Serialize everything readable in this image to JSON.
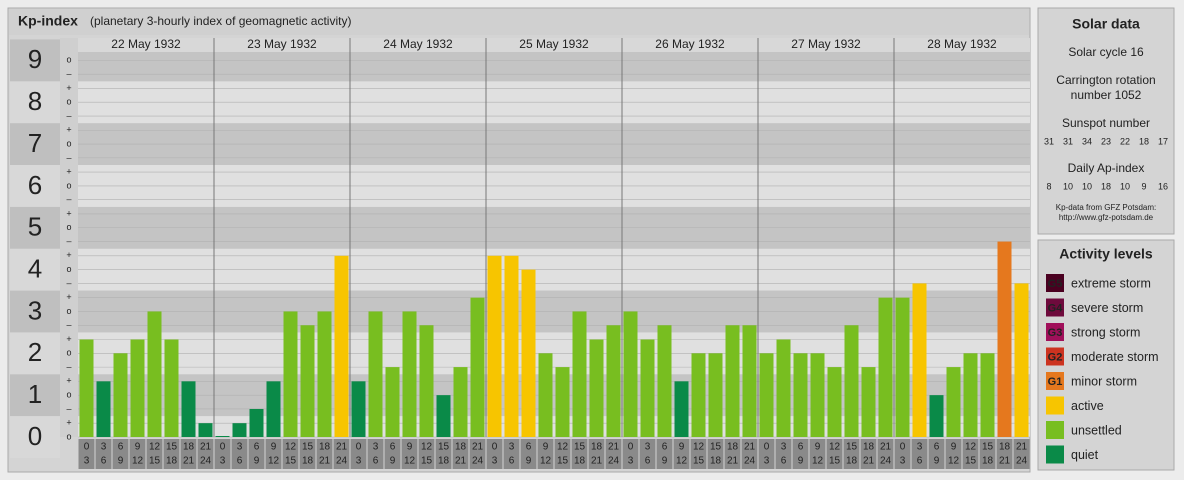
{
  "chart_data": {
    "type": "bar",
    "title": "Kp-index",
    "subtitle": "(planetary 3-hourly index of geomagnetic activity)",
    "categories": [
      "0",
      "3",
      "6",
      "9",
      "12",
      "15",
      "18",
      "21"
    ],
    "categories_end": [
      "3",
      "6",
      "9",
      "12",
      "15",
      "18",
      "21",
      "24"
    ],
    "ylim": [
      0,
      9.2
    ],
    "yticks": [
      0,
      1,
      2,
      3,
      4,
      5,
      6,
      7,
      8,
      9
    ],
    "yticks_minor": [
      {
        "value": 0,
        "label": "o"
      },
      {
        "value": 0.33,
        "label": "+"
      },
      {
        "value": 0.67,
        "label": "–"
      },
      {
        "value": 1,
        "label": "o"
      },
      {
        "value": 1.33,
        "label": "+"
      },
      {
        "value": 1.67,
        "label": "–"
      },
      {
        "value": 2,
        "label": "o"
      },
      {
        "value": 2.33,
        "label": "+"
      },
      {
        "value": 2.67,
        "label": "–"
      },
      {
        "value": 3,
        "label": "o"
      },
      {
        "value": 3.33,
        "label": "+"
      },
      {
        "value": 3.67,
        "label": "–"
      },
      {
        "value": 4,
        "label": "o"
      },
      {
        "value": 4.33,
        "label": "+"
      },
      {
        "value": 4.67,
        "label": "–"
      },
      {
        "value": 5,
        "label": "o"
      },
      {
        "value": 5.33,
        "label": "+"
      },
      {
        "value": 5.67,
        "label": "–"
      },
      {
        "value": 6,
        "label": "o"
      },
      {
        "value": 6.33,
        "label": "+"
      },
      {
        "value": 6.67,
        "label": "–"
      },
      {
        "value": 7,
        "label": "o"
      },
      {
        "value": 7.33,
        "label": "+"
      },
      {
        "value": 7.67,
        "label": "–"
      },
      {
        "value": 8,
        "label": "o"
      },
      {
        "value": 8.33,
        "label": "+"
      },
      {
        "value": 8.67,
        "label": "–"
      },
      {
        "value": 9,
        "label": "o"
      }
    ],
    "grid": true,
    "series": [
      {
        "name": "22 May 1932",
        "values": [
          2.33,
          1.33,
          2,
          2.33,
          3,
          2.33,
          1.33,
          0.33
        ],
        "colors": [
          "#78be20",
          "#0a8a48",
          "#78be20",
          "#78be20",
          "#78be20",
          "#78be20",
          "#0a8a48",
          "#0a8a48"
        ]
      },
      {
        "name": "23 May 1932",
        "values": [
          0,
          0.33,
          0.67,
          1.33,
          3,
          2.67,
          3,
          4.33
        ],
        "colors": [
          "#0a8a48",
          "#0a8a48",
          "#0a8a48",
          "#0a8a48",
          "#78be20",
          "#78be20",
          "#78be20",
          "#f7c500"
        ]
      },
      {
        "name": "24 May 1932",
        "values": [
          1.33,
          3,
          1.67,
          3,
          2.67,
          1,
          1.67,
          3.33
        ],
        "colors": [
          "#0a8a48",
          "#78be20",
          "#78be20",
          "#78be20",
          "#78be20",
          "#0a8a48",
          "#78be20",
          "#78be20"
        ]
      },
      {
        "name": "25 May 1932",
        "values": [
          4.33,
          4.33,
          4,
          2,
          1.67,
          3,
          2.33,
          2.67
        ],
        "colors": [
          "#f7c500",
          "#f7c500",
          "#f7c500",
          "#78be20",
          "#78be20",
          "#78be20",
          "#78be20",
          "#78be20"
        ]
      },
      {
        "name": "26 May 1932",
        "values": [
          3,
          2.33,
          2.67,
          1.33,
          2,
          2,
          2.67,
          2.67
        ],
        "colors": [
          "#78be20",
          "#78be20",
          "#78be20",
          "#0a8a48",
          "#78be20",
          "#78be20",
          "#78be20",
          "#78be20"
        ]
      },
      {
        "name": "27 May 1932",
        "values": [
          2,
          2.33,
          2,
          2,
          1.67,
          2.67,
          1.67,
          3.33
        ],
        "colors": [
          "#78be20",
          "#78be20",
          "#78be20",
          "#78be20",
          "#78be20",
          "#78be20",
          "#78be20",
          "#78be20"
        ]
      },
      {
        "name": "28 May 1932",
        "values": [
          3.33,
          3.67,
          1,
          1.67,
          2,
          2,
          4.67,
          3.67
        ],
        "colors": [
          "#78be20",
          "#f7c500",
          "#0a8a48",
          "#78be20",
          "#78be20",
          "#78be20",
          "#e5781e",
          "#f7c500"
        ]
      }
    ]
  },
  "solar": {
    "title": "Solar data",
    "cycle": "Solar cycle 16",
    "carrington_1": "Carrington rotation",
    "carrington_2": "number 1052",
    "sunspot_title": "Sunspot number",
    "sunspot": [
      "31",
      "31",
      "34",
      "23",
      "22",
      "18",
      "17"
    ],
    "ap_title": "Daily Ap-index",
    "ap": [
      "8",
      "10",
      "10",
      "18",
      "10",
      "9",
      "16"
    ],
    "source_1": "Kp-data from GFZ Potsdam:",
    "source_2": "http://www.gfz-potsdam.de"
  },
  "levels": {
    "title": "Activity levels",
    "items": [
      {
        "code": "G5",
        "label": "extreme storm",
        "color": "#4a0020"
      },
      {
        "code": "G4",
        "label": "severe storm",
        "color": "#6e0a3c"
      },
      {
        "code": "G3",
        "label": "strong storm",
        "color": "#a0105a"
      },
      {
        "code": "G2",
        "label": "moderate storm",
        "color": "#cc3320"
      },
      {
        "code": "G1",
        "label": "minor storm",
        "color": "#e5781e"
      },
      {
        "label": "active",
        "color": "#f7c500"
      },
      {
        "label": "unsettled",
        "color": "#78be20"
      },
      {
        "label": "quiet",
        "color": "#0a8a48"
      }
    ]
  }
}
